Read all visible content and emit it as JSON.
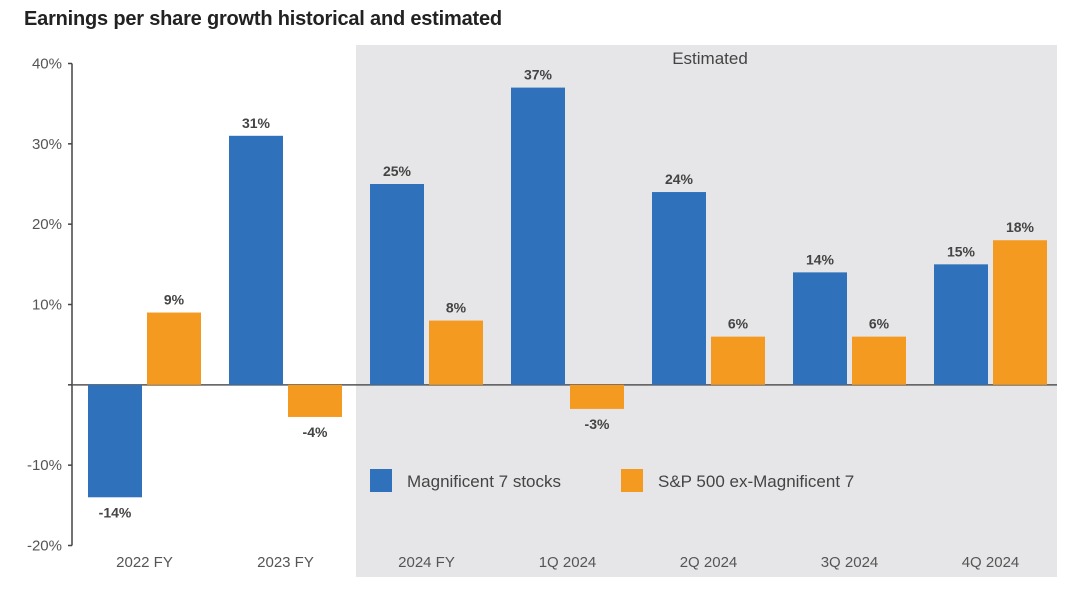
{
  "chart_data": {
    "type": "bar",
    "title": "Earnings per share growth historical and estimated",
    "xlabel": "",
    "ylabel": "",
    "ylim": [
      -20,
      40
    ],
    "yticks": [
      -20,
      -10,
      0,
      10,
      20,
      30,
      40
    ],
    "ytick_labels": [
      "-20%",
      "-10%",
      "",
      "10%",
      "20%",
      "30%",
      "40%"
    ],
    "categories": [
      "2022 FY",
      "2023 FY",
      "2024 FY",
      "1Q 2024",
      "2Q 2024",
      "3Q 2024",
      "4Q 2024"
    ],
    "series": [
      {
        "name": "Magnificent 7 stocks",
        "color": "#2f72bb",
        "values": [
          -14,
          31,
          25,
          37,
          24,
          14,
          15
        ],
        "labels": [
          "-14%",
          "31%",
          "25%",
          "37%",
          "24%",
          "14%",
          "15%"
        ]
      },
      {
        "name": "S&P 500 ex-Magnificent 7",
        "color": "#f59a21",
        "values": [
          9,
          -4,
          8,
          -3,
          6,
          6,
          18
        ],
        "labels": [
          "9%",
          "-4%",
          "8%",
          "-3%",
          "6%",
          "6%",
          "18%"
        ]
      }
    ],
    "shaded_region": {
      "label": "Estimated",
      "from_category": "2024 FY",
      "to_category": "4Q 2024",
      "color": "#e6e6e8"
    },
    "grid": false,
    "legend_position": "lower-middle"
  }
}
